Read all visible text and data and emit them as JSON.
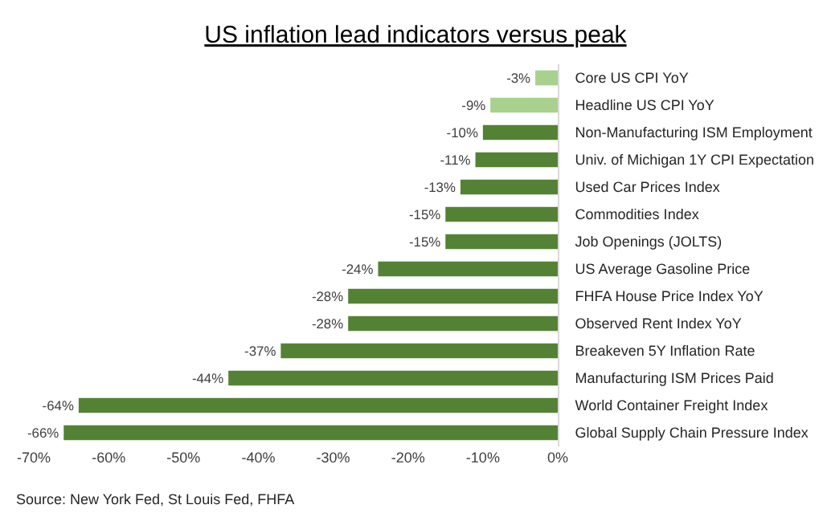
{
  "chart_data": {
    "type": "bar",
    "orientation": "horizontal",
    "title": "US inflation lead indicators versus peak",
    "categories": [
      "Core US CPI YoY",
      "Headline US CPI YoY",
      "Non-Manufacturing ISM Employment",
      "Univ. of Michigan 1Y CPI Expectation",
      "Used Car Prices Index",
      "Commodities Index",
      "Job Openings (JOLTS)",
      "US Average Gasoline Price",
      "FHFA House Price Index YoY",
      "Observed Rent Index YoY",
      "Breakeven 5Y Inflation Rate",
      "Manufacturing ISM Prices Paid",
      "World Container Freight Index",
      "Global Supply Chain Pressure Index"
    ],
    "values": [
      -3,
      -9,
      -10,
      -11,
      -13,
      -15,
      -15,
      -24,
      -28,
      -28,
      -37,
      -44,
      -64,
      -66
    ],
    "value_labels": [
      "-3%",
      "-9%",
      "-10%",
      "-11%",
      "-13%",
      "-15%",
      "-15%",
      "-24%",
      "-28%",
      "-28%",
      "-37%",
      "-44%",
      "-64%",
      "-66%"
    ],
    "colors": [
      "#a9d18e",
      "#a9d18e",
      "#548235",
      "#548235",
      "#548235",
      "#548235",
      "#548235",
      "#548235",
      "#548235",
      "#548235",
      "#548235",
      "#548235",
      "#548235",
      "#548235"
    ],
    "xlim": [
      -70,
      0
    ],
    "xticks": [
      {
        "value": -70,
        "label": "-70%"
      },
      {
        "value": -60,
        "label": "-60%"
      },
      {
        "value": -50,
        "label": "-50%"
      },
      {
        "value": -40,
        "label": "-40%"
      },
      {
        "value": -30,
        "label": "-30%"
      },
      {
        "value": -20,
        "label": "-20%"
      },
      {
        "value": -10,
        "label": "-10%"
      },
      {
        "value": 0,
        "label": "0%"
      }
    ],
    "legend": false,
    "annotations": [
      "Source: New York Fed, St Louis Fed, FHFA"
    ]
  }
}
